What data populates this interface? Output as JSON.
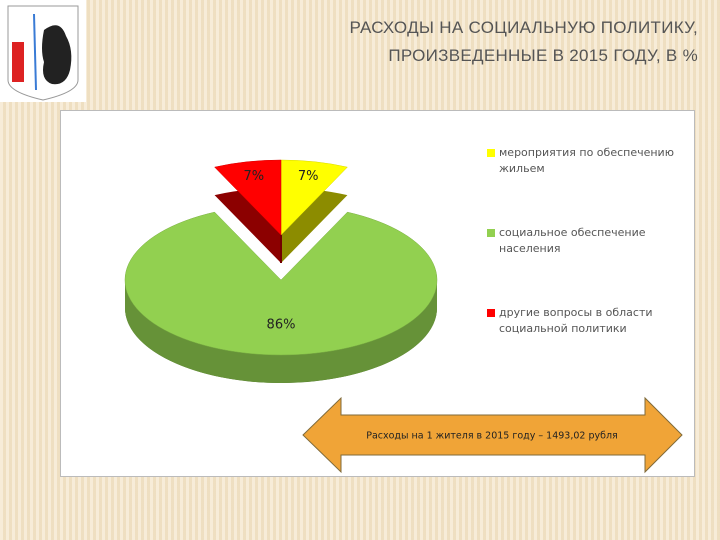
{
  "chart_data": {
    "type": "pie",
    "title": "РАСХОДЫ НА СОЦИАЛЬНУЮ ПОЛИТИКУ, ПРОИЗВЕДЕННЫЕ В 2015 ГОДУ, В %",
    "categories": [
      "мероприятия по обеспечению жильем",
      "социальное обеспечение населения",
      "другие вопросы в области социальной политики"
    ],
    "values": [
      7,
      86,
      7
    ],
    "value_labels": [
      "7%",
      "86%",
      "7%"
    ],
    "colors": [
      "#ffff00",
      "#92d050",
      "#ff0000"
    ],
    "legend": "right",
    "annotation": "Расходы на 1 жителя в 2015 году – 1493,02 рубля"
  }
}
